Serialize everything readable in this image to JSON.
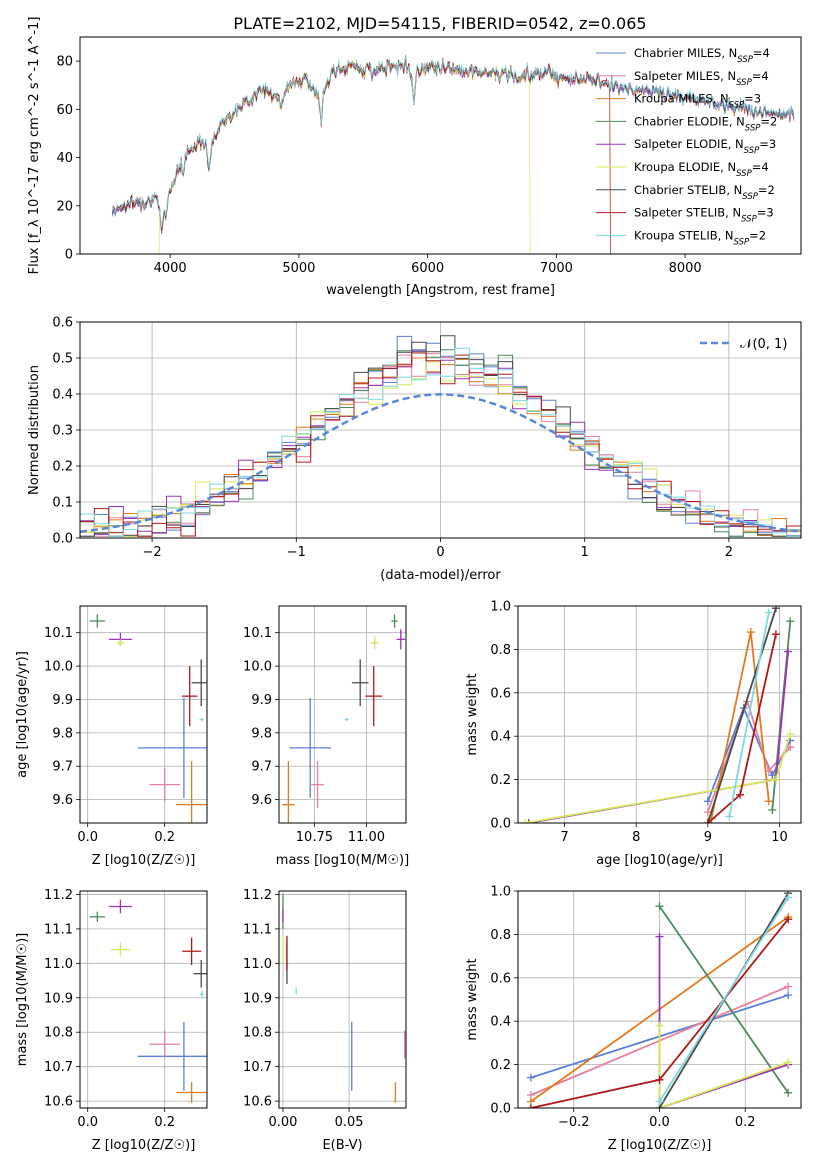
{
  "title": "PLATE=2102, MJD=54115, FIBERID=0542, z=0.065",
  "series": [
    {
      "name": "Chabrier MILES",
      "n": "4",
      "color": "#5b7fd6"
    },
    {
      "name": "Salpeter MILES",
      "n": "4",
      "color": "#e8819b"
    },
    {
      "name": "Kroupa MILES",
      "n": "3",
      "color": "#e07b1f"
    },
    {
      "name": "Chabrier ELODIE",
      "n": "2",
      "color": "#4f8a5a"
    },
    {
      "name": "Salpeter ELODIE",
      "n": "3",
      "color": "#9a35b8"
    },
    {
      "name": "Kroupa ELODIE",
      "n": "4",
      "color": "#d6e85a"
    },
    {
      "name": "Chabrier STELIB",
      "n": "2",
      "color": "#4a4a4a"
    },
    {
      "name": "Salpeter STELIB",
      "n": "3",
      "color": "#b01818"
    },
    {
      "name": "Kroupa STELIB",
      "n": "2",
      "color": "#7fd8e0"
    }
  ],
  "chart_data": [
    {
      "id": "spectrum",
      "type": "line",
      "xlabel": "wavelength [Angstrom, rest frame]",
      "ylabel": "Flux [f_λ 10^-17 erg cm^-2 s^-1 A^-1]",
      "xlim": [
        3300,
        8900
      ],
      "ylim": [
        0,
        90
      ],
      "xticks": [
        4000,
        5000,
        6000,
        7000,
        8000
      ],
      "yticks": [
        0,
        20,
        40,
        60,
        80
      ],
      "continuum": [
        [
          3550,
          18
        ],
        [
          3650,
          20
        ],
        [
          3700,
          21
        ],
        [
          3800,
          22
        ],
        [
          3880,
          23
        ],
        [
          3930,
          18
        ],
        [
          3980,
          25
        ],
        [
          4050,
          33
        ],
        [
          4100,
          40
        ],
        [
          4200,
          46
        ],
        [
          4280,
          47
        ],
        [
          4300,
          42
        ],
        [
          4350,
          50
        ],
        [
          4450,
          57
        ],
        [
          4550,
          61
        ],
        [
          4650,
          66
        ],
        [
          4750,
          68
        ],
        [
          4860,
          65
        ],
        [
          4950,
          71
        ],
        [
          5050,
          73
        ],
        [
          5170,
          64
        ],
        [
          5250,
          75
        ],
        [
          5400,
          78
        ],
        [
          5600,
          76
        ],
        [
          5800,
          79
        ],
        [
          5890,
          75
        ],
        [
          6000,
          78
        ],
        [
          6200,
          77
        ],
        [
          6400,
          75
        ],
        [
          6563,
          76
        ],
        [
          6700,
          73
        ],
        [
          6900,
          76
        ],
        [
          7100,
          73
        ],
        [
          7300,
          72
        ],
        [
          7500,
          69
        ],
        [
          7700,
          68
        ],
        [
          7900,
          66
        ],
        [
          8100,
          64
        ],
        [
          8300,
          62
        ],
        [
          8500,
          60
        ],
        [
          8700,
          58
        ],
        [
          8850,
          57
        ]
      ],
      "dips": [
        [
          3934,
          9
        ],
        [
          3968,
          8
        ],
        [
          4102,
          7
        ],
        [
          4304,
          8
        ],
        [
          4861,
          6
        ],
        [
          5175,
          10
        ],
        [
          5893,
          12
        ],
        [
          6563,
          5
        ],
        [
          7600,
          3
        ]
      ],
      "dropouts": [
        {
          "series": "Kroupa ELODIE",
          "edge": 3915,
          "side": "left"
        },
        {
          "series": "Kroupa ELODIE",
          "edge": 6790,
          "side": "right"
        },
        {
          "series": "Salpeter STELIB",
          "edge": 7420,
          "side": "right"
        }
      ]
    },
    {
      "id": "residuals",
      "type": "step",
      "xlabel": "(data-model)/error",
      "ylabel": "Normed distribution",
      "xlim": [
        -2.5,
        2.5
      ],
      "ylim": [
        0,
        0.6
      ],
      "xticks": [
        -2,
        -1,
        0,
        1,
        2
      ],
      "yticks": [
        0.0,
        0.1,
        0.2,
        0.3,
        0.4,
        0.5,
        0.6
      ],
      "bin_width": 0.1,
      "sigma": 1.0,
      "reference": {
        "label": "𝒩(0, 1)",
        "mean": 0,
        "sigma": 1
      }
    },
    {
      "id": "age-vs-Z",
      "type": "errorbar",
      "xlabel": "Z [log10(Z/Z☉)]",
      "ylabel": "age  [log10(age/yr)]",
      "xlim": [
        -0.02,
        0.31
      ],
      "ylim": [
        9.53,
        10.18
      ],
      "xticks": [
        0.0,
        0.2
      ],
      "yticks": [
        9.6,
        9.7,
        9.8,
        9.9,
        10.0,
        10.1
      ],
      "points": [
        {
          "s": "Chabrier MILES",
          "x": 0.25,
          "y": 9.755,
          "xe": 0.12,
          "ye": 0.15
        },
        {
          "s": "Salpeter MILES",
          "x": 0.2,
          "y": 9.645,
          "xe": 0.04,
          "ye": 0.05
        },
        {
          "s": "Kroupa MILES",
          "x": 0.27,
          "y": 9.585,
          "xe": 0.04,
          "ye": 0.13
        },
        {
          "s": "Chabrier ELODIE",
          "x": 0.025,
          "y": 10.135,
          "xe": 0.02,
          "ye": 0.02
        },
        {
          "s": "Salpeter ELODIE",
          "x": 0.085,
          "y": 10.08,
          "xe": 0.03,
          "ye": 0.02
        },
        {
          "s": "Kroupa ELODIE",
          "x": 0.085,
          "y": 10.07,
          "xe": 0.01,
          "ye": 0.01
        },
        {
          "s": "Chabrier STELIB",
          "x": 0.295,
          "y": 9.95,
          "xe": 0.025,
          "ye": 0.07
        },
        {
          "s": "Salpeter STELIB",
          "x": 0.265,
          "y": 9.91,
          "xe": 0.02,
          "ye": 0.09
        },
        {
          "s": "Kroupa STELIB",
          "x": 0.297,
          "y": 9.84,
          "xe": 0.005,
          "ye": 0.005
        }
      ]
    },
    {
      "id": "age-vs-mass",
      "type": "errorbar",
      "xlabel": "mass [log10(M/M☉)]",
      "ylabel": "",
      "xlim": [
        10.58,
        11.19
      ],
      "ylim": [
        9.53,
        10.18
      ],
      "xticks": [
        10.75,
        11.0
      ],
      "yticks": [
        9.6,
        9.7,
        9.8,
        9.9,
        10.0,
        10.1
      ],
      "points": [
        {
          "s": "Chabrier MILES",
          "x": 10.73,
          "y": 9.755,
          "xe": 0.1,
          "ye": 0.15
        },
        {
          "s": "Salpeter MILES",
          "x": 10.765,
          "y": 9.645,
          "xe": 0.03,
          "ye": 0.07
        },
        {
          "s": "Kroupa MILES",
          "x": 10.625,
          "y": 9.585,
          "xe": 0.03,
          "ye": 0.13
        },
        {
          "s": "Chabrier ELODIE",
          "x": 11.135,
          "y": 10.135,
          "xe": 0.015,
          "ye": 0.02
        },
        {
          "s": "Salpeter ELODIE",
          "x": 11.165,
          "y": 10.08,
          "xe": 0.02,
          "ye": 0.03
        },
        {
          "s": "Kroupa ELODIE",
          "x": 11.04,
          "y": 10.07,
          "xe": 0.02,
          "ye": 0.02
        },
        {
          "s": "Chabrier STELIB",
          "x": 10.97,
          "y": 9.95,
          "xe": 0.04,
          "ye": 0.07
        },
        {
          "s": "Salpeter STELIB",
          "x": 11.035,
          "y": 9.91,
          "xe": 0.04,
          "ye": 0.09
        },
        {
          "s": "Kroupa STELIB",
          "x": 10.905,
          "y": 9.84,
          "xe": 0.01,
          "ye": 0.005
        }
      ]
    },
    {
      "id": "weight-vs-age",
      "type": "line",
      "xlabel": "age  [log10(age/yr)]",
      "ylabel": "mass weight",
      "xlim": [
        6.35,
        10.3
      ],
      "ylim": [
        0,
        1
      ],
      "xticks": [
        7,
        8,
        9,
        10
      ],
      "yticks": [
        0.0,
        0.2,
        0.4,
        0.6,
        0.8,
        1.0
      ],
      "lines": [
        {
          "s": "Chabrier MILES",
          "pts": [
            [
              9.0,
              0.1
            ],
            [
              9.5,
              0.53
            ],
            [
              9.9,
              0.22
            ],
            [
              10.15,
              0.38
            ]
          ]
        },
        {
          "s": "Salpeter MILES",
          "pts": [
            [
              9.0,
              0.05
            ],
            [
              9.55,
              0.56
            ],
            [
              9.85,
              0.24
            ],
            [
              10.15,
              0.35
            ]
          ]
        },
        {
          "s": "Kroupa MILES",
          "pts": [
            [
              9.05,
              0.02
            ],
            [
              9.6,
              0.88
            ],
            [
              9.85,
              0.1
            ]
          ]
        },
        {
          "s": "Chabrier ELODIE",
          "pts": [
            [
              9.9,
              0.06
            ],
            [
              10.15,
              0.93
            ]
          ]
        },
        {
          "s": "Salpeter ELODIE",
          "pts": [
            [
              6.5,
              0.0
            ],
            [
              9.95,
              0.2
            ],
            [
              10.12,
              0.79
            ]
          ]
        },
        {
          "s": "Kroupa ELODIE",
          "pts": [
            [
              6.45,
              0.0
            ],
            [
              9.95,
              0.2
            ],
            [
              10.15,
              0.41
            ]
          ]
        },
        {
          "s": "Chabrier STELIB",
          "pts": [
            [
              9.0,
              0.0
            ],
            [
              9.95,
              0.99
            ]
          ]
        },
        {
          "s": "Salpeter STELIB",
          "pts": [
            [
              9.0,
              0.0
            ],
            [
              9.45,
              0.13
            ],
            [
              9.95,
              0.87
            ]
          ]
        },
        {
          "s": "Kroupa STELIB",
          "pts": [
            [
              9.3,
              0.03
            ],
            [
              9.85,
              0.97
            ]
          ]
        }
      ]
    },
    {
      "id": "mass-vs-Z",
      "type": "errorbar",
      "xlabel": "Z [log10(Z/Z☉)]",
      "ylabel": "mass [log10(M/M☉)]",
      "xlim": [
        -0.02,
        0.31
      ],
      "ylim": [
        10.58,
        11.21
      ],
      "xticks": [
        0.0,
        0.2
      ],
      "yticks": [
        10.6,
        10.7,
        10.8,
        10.9,
        11.0,
        11.1,
        11.2
      ],
      "points": [
        {
          "s": "Chabrier MILES",
          "x": 0.25,
          "y": 10.73,
          "xe": 0.12,
          "ye": 0.1
        },
        {
          "s": "Salpeter MILES",
          "x": 0.2,
          "y": 10.765,
          "xe": 0.04,
          "ye": 0.04
        },
        {
          "s": "Kroupa MILES",
          "x": 0.27,
          "y": 10.625,
          "xe": 0.04,
          "ye": 0.03
        },
        {
          "s": "Chabrier ELODIE",
          "x": 0.025,
          "y": 11.135,
          "xe": 0.02,
          "ye": 0.015
        },
        {
          "s": "Salpeter ELODIE",
          "x": 0.085,
          "y": 11.165,
          "xe": 0.03,
          "ye": 0.02
        },
        {
          "s": "Kroupa ELODIE",
          "x": 0.085,
          "y": 11.04,
          "xe": 0.025,
          "ye": 0.02
        },
        {
          "s": "Chabrier STELIB",
          "x": 0.295,
          "y": 10.97,
          "xe": 0.02,
          "ye": 0.04
        },
        {
          "s": "Salpeter STELIB",
          "x": 0.27,
          "y": 11.035,
          "xe": 0.025,
          "ye": 0.04
        },
        {
          "s": "Kroupa STELIB",
          "x": 0.297,
          "y": 10.91,
          "xe": 0.005,
          "ye": 0.01
        }
      ]
    },
    {
      "id": "mass-vs-ebv",
      "type": "errorbar",
      "xlabel": "E(B-V)",
      "ylabel": "",
      "xlim": [
        -0.003,
        0.093
      ],
      "ylim": [
        10.58,
        11.21
      ],
      "xticks": [
        0.0,
        0.05
      ],
      "yticks": [
        10.6,
        10.7,
        10.8,
        10.9,
        11.0,
        11.1,
        11.2
      ],
      "points": [
        {
          "s": "Chabrier MILES",
          "x": 0.052,
          "y": 10.73,
          "xe": 0.0,
          "ye": 0.1
        },
        {
          "s": "Salpeter MILES",
          "x": 0.092,
          "y": 10.765,
          "xe": 0.0,
          "ye": 0.04
        },
        {
          "s": "Kroupa MILES",
          "x": 0.085,
          "y": 10.625,
          "xe": 0.0,
          "ye": 0.03
        },
        {
          "s": "Chabrier ELODIE",
          "x": 0.0,
          "y": 11.15,
          "xe": 0.0,
          "ye": 0.05
        },
        {
          "s": "Salpeter ELODIE",
          "x": 0.0,
          "y": 11.14,
          "xe": 0.0,
          "ye": 0.02
        },
        {
          "s": "Kroupa ELODIE",
          "x": 0.0,
          "y": 11.04,
          "xe": 0.0,
          "ye": 0.04
        },
        {
          "s": "Chabrier STELIB",
          "x": 0.003,
          "y": 11.0,
          "xe": 0.0,
          "ye": 0.06
        },
        {
          "s": "Salpeter STELIB",
          "x": 0.003,
          "y": 11.03,
          "xe": 0.0,
          "ye": 0.05
        },
        {
          "s": "Kroupa STELIB",
          "x": 0.01,
          "y": 10.92,
          "xe": 0.0,
          "ye": 0.01
        }
      ]
    },
    {
      "id": "weight-vs-Z",
      "type": "line",
      "xlabel": "Z [log10(Z/Z☉)]",
      "ylabel": "mass weight",
      "xlim": [
        -0.33,
        0.33
      ],
      "ylim": [
        0,
        1
      ],
      "xticks": [
        -0.2,
        0.0,
        0.2
      ],
      "yticks": [
        0.0,
        0.2,
        0.4,
        0.6,
        0.8,
        1.0
      ],
      "lines": [
        {
          "s": "Chabrier MILES",
          "pts": [
            [
              -0.3,
              0.14
            ],
            [
              0.3,
              0.52
            ]
          ]
        },
        {
          "s": "Salpeter MILES",
          "pts": [
            [
              -0.3,
              0.06
            ],
            [
              0.3,
              0.56
            ]
          ]
        },
        {
          "s": "Kroupa MILES",
          "pts": [
            [
              -0.3,
              0.03
            ],
            [
              0.3,
              0.88
            ]
          ]
        },
        {
          "s": "Chabrier ELODIE",
          "pts": [
            [
              0.0,
              0.93
            ],
            [
              0.3,
              0.07
            ]
          ]
        },
        {
          "s": "Salpeter ELODIE",
          "pts": [
            [
              0.0,
              0.79
            ],
            [
              0.0,
              0.0
            ],
            [
              0.3,
              0.2
            ]
          ]
        },
        {
          "s": "Kroupa ELODIE",
          "pts": [
            [
              0.0,
              0.38
            ],
            [
              0.0,
              0.0
            ],
            [
              0.3,
              0.21
            ]
          ]
        },
        {
          "s": "Chabrier STELIB",
          "pts": [
            [
              0.0,
              0.0
            ],
            [
              0.3,
              0.99
            ]
          ]
        },
        {
          "s": "Salpeter STELIB",
          "pts": [
            [
              -0.3,
              0.0
            ],
            [
              0.0,
              0.13
            ],
            [
              0.3,
              0.87
            ]
          ]
        },
        {
          "s": "Kroupa STELIB",
          "pts": [
            [
              0.0,
              0.03
            ],
            [
              0.3,
              0.97
            ]
          ]
        }
      ]
    }
  ]
}
